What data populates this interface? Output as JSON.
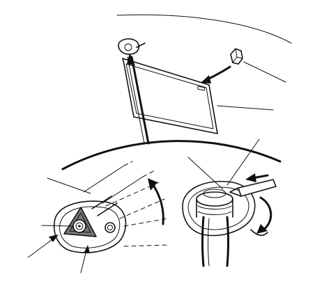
{
  "diagram": {
    "domain": "Diagram",
    "components": [
      "roof-panel-curve",
      "sun-visor",
      "visor-clip",
      "headliner-edge",
      "visor-mount-bracket",
      "mount-screw",
      "retainer-clip",
      "pry-tool"
    ],
    "arrows": [
      "clip-install-arrow",
      "visor-lift-arrow",
      "mount-rotate-arrow",
      "pry-push-arrow",
      "clip-rotate-arrow"
    ],
    "callouts": 8
  }
}
